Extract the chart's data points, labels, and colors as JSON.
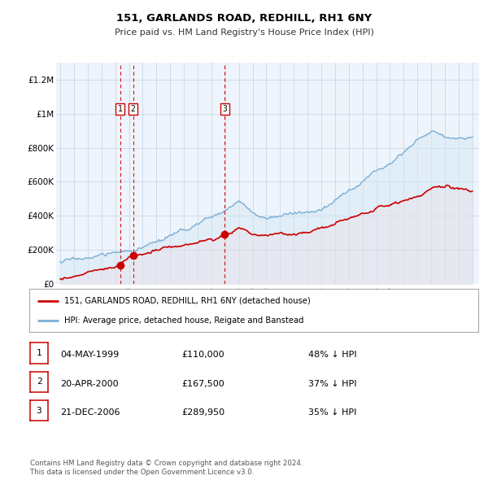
{
  "title": "151, GARLANDS ROAD, REDHILL, RH1 6NY",
  "subtitle": "Price paid vs. HM Land Registry's House Price Index (HPI)",
  "legend_label_red": "151, GARLANDS ROAD, REDHILL, RH1 6NY (detached house)",
  "legend_label_blue": "HPI: Average price, detached house, Reigate and Banstead",
  "footer1": "Contains HM Land Registry data © Crown copyright and database right 2024.",
  "footer2": "This data is licensed under the Open Government Licence v3.0.",
  "transactions": [
    {
      "num": 1,
      "date": "04-MAY-1999",
      "price": "£110,000",
      "pct": "48% ↓ HPI",
      "year": 1999.35
    },
    {
      "num": 2,
      "date": "20-APR-2000",
      "price": "£167,500",
      "pct": "37% ↓ HPI",
      "year": 2000.3
    },
    {
      "num": 3,
      "date": "21-DEC-2006",
      "price": "£289,950",
      "pct": "35% ↓ HPI",
      "year": 2006.97
    }
  ],
  "transaction_prices": [
    110000,
    167500,
    289950
  ],
  "vline_years": [
    1999.35,
    2000.3,
    2006.97
  ],
  "red_line_color": "#cc0000",
  "blue_line_color": "#7aafd4",
  "blue_fill_color": "#d6e8f5",
  "dot_color": "#cc0000",
  "vline_color": "#cc0000",
  "background_color": "#ffffff",
  "plot_bg_color": "#eef4fb",
  "grid_color": "#c8d8e8",
  "ylim": [
    0,
    1300000
  ],
  "xlim_start": 1994.7,
  "xlim_end": 2025.5,
  "yticks": [
    0,
    200000,
    400000,
    600000,
    800000,
    1000000,
    1200000
  ],
  "ytick_labels": [
    "£0",
    "£200K",
    "£400K",
    "£600K",
    "£800K",
    "£1M",
    "£1.2M"
  ],
  "xticks": [
    1995,
    1996,
    1997,
    1998,
    1999,
    2000,
    2001,
    2002,
    2003,
    2004,
    2005,
    2006,
    2007,
    2008,
    2009,
    2010,
    2011,
    2012,
    2013,
    2014,
    2015,
    2016,
    2017,
    2018,
    2019,
    2020,
    2021,
    2022,
    2023,
    2024,
    2025
  ]
}
